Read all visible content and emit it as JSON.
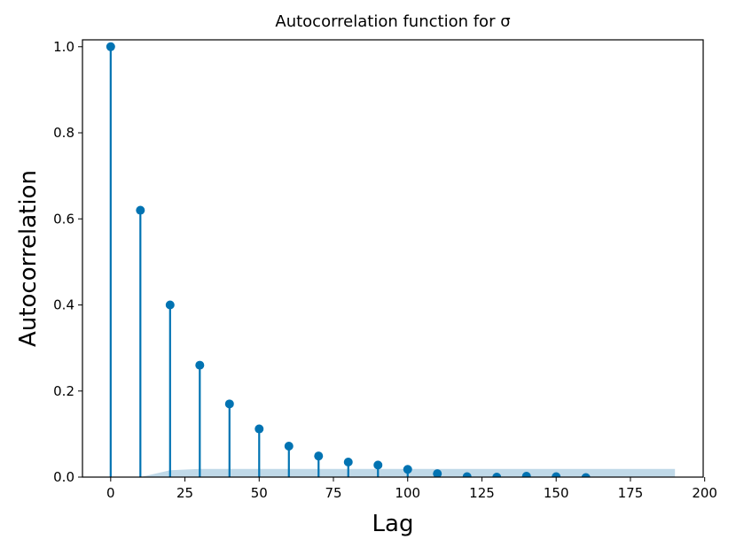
{
  "chart_data": {
    "type": "stem",
    "title": "Autocorrelation function for σ",
    "xlabel": "Lag",
    "ylabel": "Autocorrelation",
    "x": [
      0,
      10,
      20,
      30,
      40,
      50,
      60,
      70,
      80,
      90,
      100,
      110,
      120,
      130,
      140,
      150,
      160
    ],
    "series": [
      {
        "color": "#0173b2",
        "values": [
          1.0,
          0.62,
          0.4,
          0.26,
          0.17,
          0.112,
          0.072,
          0.049,
          0.035,
          0.028,
          0.018,
          0.008,
          0.001,
          0.0,
          0.002,
          0.001,
          -0.001
        ]
      }
    ],
    "confidence_band": {
      "color": "#b9d5e6",
      "x": [
        10,
        20,
        30,
        190
      ],
      "upper": [
        0.0,
        0.016,
        0.019,
        0.019
      ]
    },
    "xlim": [
      -9.5,
      199.5
    ],
    "ylim": [
      0,
      1.016
    ],
    "xticks": [
      0,
      25,
      50,
      75,
      100,
      125,
      150,
      175,
      200
    ],
    "yticks": [
      {
        "value": 0,
        "label": "0.0"
      },
      0.2,
      0.4,
      0.6,
      0.8,
      {
        "value": 1,
        "label": "1.0"
      }
    ]
  }
}
